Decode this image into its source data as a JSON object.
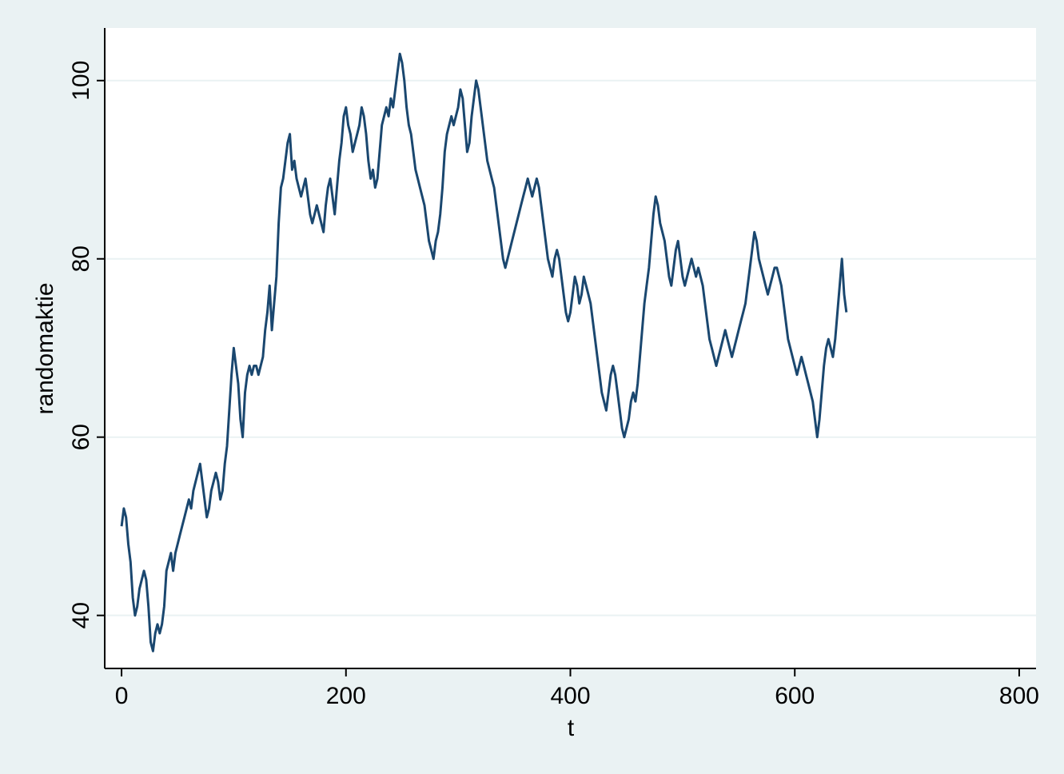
{
  "chart_data": {
    "type": "line",
    "title": "",
    "xlabel": "t",
    "ylabel": "randomaktie",
    "xlim": [
      -15,
      815
    ],
    "ylim": [
      34.05,
      105.9
    ],
    "xticks": [
      0,
      200,
      400,
      600,
      800
    ],
    "yticks": [
      40,
      60,
      80,
      100
    ],
    "xtick_labels": [
      "0",
      "200",
      "400",
      "600",
      "800"
    ],
    "ytick_labels": [
      "40",
      "60",
      "80",
      "100"
    ],
    "grid": "horizontal",
    "legend": "none",
    "colors": {
      "line": "#1a476f",
      "background": "#eaf2f3",
      "plot_area": "#ffffff",
      "gridline": "#eaf2f3"
    },
    "series": [
      {
        "values": [
          [
            0,
            50
          ],
          [
            2,
            52
          ],
          [
            4,
            51
          ],
          [
            6,
            48
          ],
          [
            8,
            46
          ],
          [
            10,
            42
          ],
          [
            12,
            40
          ],
          [
            14,
            41
          ],
          [
            16,
            43
          ],
          [
            18,
            44
          ],
          [
            20,
            45
          ],
          [
            22,
            44
          ],
          [
            24,
            41
          ],
          [
            26,
            37
          ],
          [
            28,
            36
          ],
          [
            30,
            38
          ],
          [
            32,
            39
          ],
          [
            34,
            38
          ],
          [
            36,
            39
          ],
          [
            38,
            41
          ],
          [
            40,
            45
          ],
          [
            42,
            46
          ],
          [
            44,
            47
          ],
          [
            46,
            45
          ],
          [
            48,
            47
          ],
          [
            50,
            48
          ],
          [
            52,
            49
          ],
          [
            54,
            50
          ],
          [
            56,
            51
          ],
          [
            58,
            52
          ],
          [
            60,
            53
          ],
          [
            62,
            52
          ],
          [
            64,
            54
          ],
          [
            66,
            55
          ],
          [
            68,
            56
          ],
          [
            70,
            57
          ],
          [
            72,
            55
          ],
          [
            74,
            53
          ],
          [
            76,
            51
          ],
          [
            78,
            52
          ],
          [
            80,
            54
          ],
          [
            82,
            55
          ],
          [
            84,
            56
          ],
          [
            86,
            55
          ],
          [
            88,
            53
          ],
          [
            90,
            54
          ],
          [
            92,
            57
          ],
          [
            94,
            59
          ],
          [
            96,
            63
          ],
          [
            98,
            67
          ],
          [
            100,
            70
          ],
          [
            102,
            68
          ],
          [
            104,
            66
          ],
          [
            106,
            62
          ],
          [
            108,
            60
          ],
          [
            110,
            65
          ],
          [
            112,
            67
          ],
          [
            114,
            68
          ],
          [
            116,
            67
          ],
          [
            118,
            68
          ],
          [
            120,
            68
          ],
          [
            122,
            67
          ],
          [
            124,
            68
          ],
          [
            126,
            69
          ],
          [
            128,
            72
          ],
          [
            130,
            74
          ],
          [
            132,
            77
          ],
          [
            134,
            72
          ],
          [
            136,
            75
          ],
          [
            138,
            78
          ],
          [
            140,
            84
          ],
          [
            142,
            88
          ],
          [
            144,
            89
          ],
          [
            146,
            91
          ],
          [
            148,
            93
          ],
          [
            150,
            94
          ],
          [
            152,
            90
          ],
          [
            154,
            91
          ],
          [
            156,
            89
          ],
          [
            158,
            88
          ],
          [
            160,
            87
          ],
          [
            162,
            88
          ],
          [
            164,
            89
          ],
          [
            166,
            87
          ],
          [
            168,
            85
          ],
          [
            170,
            84
          ],
          [
            172,
            85
          ],
          [
            174,
            86
          ],
          [
            176,
            85
          ],
          [
            178,
            84
          ],
          [
            180,
            83
          ],
          [
            182,
            86
          ],
          [
            184,
            88
          ],
          [
            186,
            89
          ],
          [
            188,
            87
          ],
          [
            190,
            85
          ],
          [
            192,
            88
          ],
          [
            194,
            91
          ],
          [
            196,
            93
          ],
          [
            198,
            96
          ],
          [
            200,
            97
          ],
          [
            202,
            95
          ],
          [
            204,
            94
          ],
          [
            206,
            92
          ],
          [
            208,
            93
          ],
          [
            210,
            94
          ],
          [
            212,
            95
          ],
          [
            214,
            97
          ],
          [
            216,
            96
          ],
          [
            218,
            94
          ],
          [
            220,
            91
          ],
          [
            222,
            89
          ],
          [
            224,
            90
          ],
          [
            226,
            88
          ],
          [
            228,
            89
          ],
          [
            230,
            92
          ],
          [
            232,
            95
          ],
          [
            234,
            96
          ],
          [
            236,
            97
          ],
          [
            238,
            96
          ],
          [
            240,
            98
          ],
          [
            242,
            97
          ],
          [
            244,
            99
          ],
          [
            246,
            101
          ],
          [
            248,
            103
          ],
          [
            250,
            102
          ],
          [
            252,
            100
          ],
          [
            254,
            97
          ],
          [
            256,
            95
          ],
          [
            258,
            94
          ],
          [
            260,
            92
          ],
          [
            262,
            90
          ],
          [
            264,
            89
          ],
          [
            266,
            88
          ],
          [
            268,
            87
          ],
          [
            270,
            86
          ],
          [
            272,
            84
          ],
          [
            274,
            82
          ],
          [
            276,
            81
          ],
          [
            278,
            80
          ],
          [
            280,
            82
          ],
          [
            282,
            83
          ],
          [
            284,
            85
          ],
          [
            286,
            88
          ],
          [
            288,
            92
          ],
          [
            290,
            94
          ],
          [
            292,
            95
          ],
          [
            294,
            96
          ],
          [
            296,
            95
          ],
          [
            298,
            96
          ],
          [
            300,
            97
          ],
          [
            302,
            99
          ],
          [
            304,
            98
          ],
          [
            306,
            95
          ],
          [
            308,
            92
          ],
          [
            310,
            93
          ],
          [
            312,
            96
          ],
          [
            314,
            98
          ],
          [
            316,
            100
          ],
          [
            318,
            99
          ],
          [
            320,
            97
          ],
          [
            322,
            95
          ],
          [
            324,
            93
          ],
          [
            326,
            91
          ],
          [
            328,
            90
          ],
          [
            330,
            89
          ],
          [
            332,
            88
          ],
          [
            334,
            86
          ],
          [
            336,
            84
          ],
          [
            338,
            82
          ],
          [
            340,
            80
          ],
          [
            342,
            79
          ],
          [
            344,
            80
          ],
          [
            346,
            81
          ],
          [
            348,
            82
          ],
          [
            350,
            83
          ],
          [
            352,
            84
          ],
          [
            354,
            85
          ],
          [
            356,
            86
          ],
          [
            358,
            87
          ],
          [
            360,
            88
          ],
          [
            362,
            89
          ],
          [
            364,
            88
          ],
          [
            366,
            87
          ],
          [
            368,
            88
          ],
          [
            370,
            89
          ],
          [
            372,
            88
          ],
          [
            374,
            86
          ],
          [
            376,
            84
          ],
          [
            378,
            82
          ],
          [
            380,
            80
          ],
          [
            382,
            79
          ],
          [
            384,
            78
          ],
          [
            386,
            80
          ],
          [
            388,
            81
          ],
          [
            390,
            80
          ],
          [
            392,
            78
          ],
          [
            394,
            76
          ],
          [
            396,
            74
          ],
          [
            398,
            73
          ],
          [
            400,
            74
          ],
          [
            402,
            76
          ],
          [
            404,
            78
          ],
          [
            406,
            77
          ],
          [
            408,
            75
          ],
          [
            410,
            76
          ],
          [
            412,
            78
          ],
          [
            414,
            77
          ],
          [
            416,
            76
          ],
          [
            418,
            75
          ],
          [
            420,
            73
          ],
          [
            422,
            71
          ],
          [
            424,
            69
          ],
          [
            426,
            67
          ],
          [
            428,
            65
          ],
          [
            430,
            64
          ],
          [
            432,
            63
          ],
          [
            434,
            65
          ],
          [
            436,
            67
          ],
          [
            438,
            68
          ],
          [
            440,
            67
          ],
          [
            442,
            65
          ],
          [
            444,
            63
          ],
          [
            446,
            61
          ],
          [
            448,
            60
          ],
          [
            450,
            61
          ],
          [
            452,
            62
          ],
          [
            454,
            64
          ],
          [
            456,
            65
          ],
          [
            458,
            64
          ],
          [
            460,
            66
          ],
          [
            462,
            69
          ],
          [
            464,
            72
          ],
          [
            466,
            75
          ],
          [
            468,
            77
          ],
          [
            470,
            79
          ],
          [
            472,
            82
          ],
          [
            474,
            85
          ],
          [
            476,
            87
          ],
          [
            478,
            86
          ],
          [
            480,
            84
          ],
          [
            482,
            83
          ],
          [
            484,
            82
          ],
          [
            486,
            80
          ],
          [
            488,
            78
          ],
          [
            490,
            77
          ],
          [
            492,
            79
          ],
          [
            494,
            81
          ],
          [
            496,
            82
          ],
          [
            498,
            80
          ],
          [
            500,
            78
          ],
          [
            502,
            77
          ],
          [
            504,
            78
          ],
          [
            506,
            79
          ],
          [
            508,
            80
          ],
          [
            510,
            79
          ],
          [
            512,
            78
          ],
          [
            514,
            79
          ],
          [
            516,
            78
          ],
          [
            518,
            77
          ],
          [
            520,
            75
          ],
          [
            522,
            73
          ],
          [
            524,
            71
          ],
          [
            526,
            70
          ],
          [
            528,
            69
          ],
          [
            530,
            68
          ],
          [
            532,
            69
          ],
          [
            534,
            70
          ],
          [
            536,
            71
          ],
          [
            538,
            72
          ],
          [
            540,
            71
          ],
          [
            542,
            70
          ],
          [
            544,
            69
          ],
          [
            546,
            70
          ],
          [
            548,
            71
          ],
          [
            550,
            72
          ],
          [
            552,
            73
          ],
          [
            554,
            74
          ],
          [
            556,
            75
          ],
          [
            558,
            77
          ],
          [
            560,
            79
          ],
          [
            562,
            81
          ],
          [
            564,
            83
          ],
          [
            566,
            82
          ],
          [
            568,
            80
          ],
          [
            570,
            79
          ],
          [
            572,
            78
          ],
          [
            574,
            77
          ],
          [
            576,
            76
          ],
          [
            578,
            77
          ],
          [
            580,
            78
          ],
          [
            582,
            79
          ],
          [
            584,
            79
          ],
          [
            586,
            78
          ],
          [
            588,
            77
          ],
          [
            590,
            75
          ],
          [
            592,
            73
          ],
          [
            594,
            71
          ],
          [
            596,
            70
          ],
          [
            598,
            69
          ],
          [
            600,
            68
          ],
          [
            602,
            67
          ],
          [
            604,
            68
          ],
          [
            606,
            69
          ],
          [
            608,
            68
          ],
          [
            610,
            67
          ],
          [
            612,
            66
          ],
          [
            614,
            65
          ],
          [
            616,
            64
          ],
          [
            618,
            62
          ],
          [
            620,
            60
          ],
          [
            622,
            62
          ],
          [
            624,
            65
          ],
          [
            626,
            68
          ],
          [
            628,
            70
          ],
          [
            630,
            71
          ],
          [
            632,
            70
          ],
          [
            634,
            69
          ],
          [
            636,
            71
          ],
          [
            638,
            74
          ],
          [
            640,
            77
          ],
          [
            642,
            80
          ],
          [
            644,
            76
          ],
          [
            646,
            74
          ]
        ]
      }
    ]
  }
}
